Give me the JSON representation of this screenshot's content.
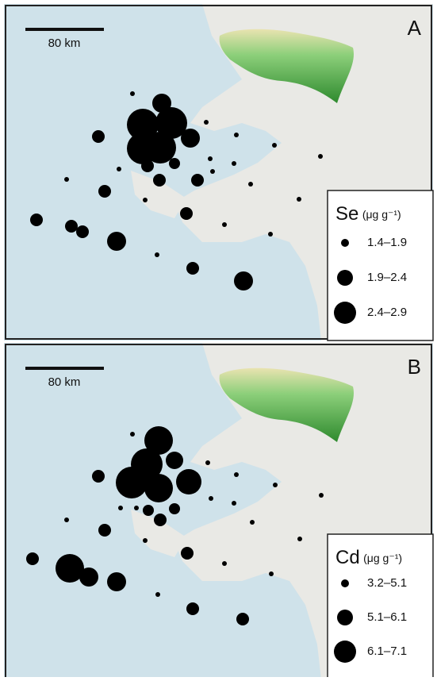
{
  "panels": [
    {
      "label": "A",
      "scale": "80 km",
      "legend": {
        "element": "Se",
        "unit": "(μg g⁻¹)",
        "entries": [
          "1.4–1.9",
          "1.9–2.4",
          "2.4–2.9"
        ]
      }
    },
    {
      "label": "B",
      "scale": "80 km",
      "legend": {
        "element": "Cd",
        "unit": "(μg g⁻¹)",
        "entries": [
          "3.2–5.1",
          "5.1–6.1",
          "6.1–7.1"
        ]
      }
    }
  ]
}
